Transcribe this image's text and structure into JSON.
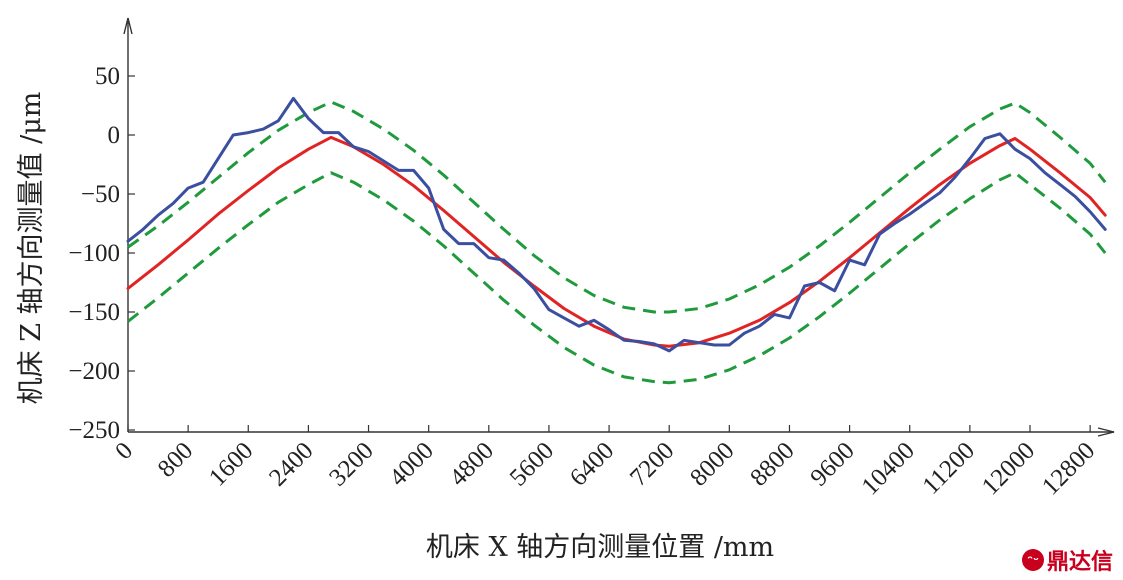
{
  "chart_data": {
    "type": "line",
    "title": "",
    "xlabel": "机床 X 轴方向测量位置 /mm",
    "ylabel": "机床 Z 轴方向测量值 /μm",
    "xlim": [
      0,
      13000
    ],
    "ylim": [
      -250,
      75
    ],
    "xticks": [
      0,
      800,
      1600,
      2400,
      3200,
      4000,
      4800,
      5600,
      6400,
      7200,
      8000,
      8800,
      9600,
      10400,
      11200,
      12000,
      12800
    ],
    "yticks": [
      50,
      0,
      -50,
      -100,
      -150,
      -200,
      -250
    ],
    "grid": false,
    "legend": "none",
    "series": [
      {
        "color": "#3a4fa0",
        "style": "solid",
        "x": [
          0,
          200,
          400,
          600,
          800,
          1000,
          1200,
          1400,
          1600,
          1800,
          2000,
          2200,
          2400,
          2600,
          2800,
          3000,
          3200,
          3400,
          3600,
          3800,
          4000,
          4200,
          4400,
          4600,
          4800,
          5000,
          5200,
          5400,
          5600,
          5800,
          6000,
          6200,
          6400,
          6600,
          6800,
          7000,
          7200,
          7400,
          7600,
          7800,
          8000,
          8200,
          8400,
          8600,
          8800,
          9000,
          9200,
          9400,
          9600,
          9800,
          10000,
          10200,
          10400,
          10600,
          10800,
          11000,
          11200,
          11400,
          11600,
          11800,
          12000,
          12200,
          12400,
          12600,
          12800,
          13000
        ],
        "y": [
          -90,
          -80,
          -68,
          -58,
          -45,
          -40,
          -20,
          0,
          2,
          5,
          12,
          31,
          14,
          2,
          2,
          -10,
          -14,
          -22,
          -30,
          -30,
          -45,
          -80,
          -92,
          -92,
          -104,
          -106,
          -117,
          -130,
          -148,
          -155,
          -162,
          -157,
          -165,
          -174,
          -175,
          -177,
          -183,
          -174,
          -176,
          -178,
          -178,
          -168,
          -162,
          -152,
          -155,
          -128,
          -125,
          -132,
          -106,
          -110,
          -84,
          -75,
          -67,
          -58,
          -49,
          -36,
          -20,
          -3,
          1,
          -12,
          -20,
          -32,
          -42,
          -52,
          -65,
          -80
        ]
      },
      {
        "color": "#e02424",
        "style": "solid",
        "x": [
          0,
          400,
          800,
          1200,
          1600,
          2000,
          2400,
          2700,
          3000,
          3400,
          3800,
          4200,
          4600,
          5000,
          5400,
          5800,
          6200,
          6600,
          7000,
          7200,
          7600,
          8000,
          8400,
          8800,
          9200,
          9600,
          10000,
          10400,
          10800,
          11200,
          11600,
          11800,
          12000,
          12400,
          12800,
          13000
        ],
        "y": [
          -130,
          -110,
          -89,
          -67,
          -47,
          -28,
          -12,
          -2,
          -10,
          -25,
          -43,
          -64,
          -86,
          -108,
          -128,
          -147,
          -162,
          -173,
          -178,
          -179,
          -176,
          -168,
          -157,
          -142,
          -124,
          -104,
          -83,
          -62,
          -42,
          -24,
          -9,
          -3,
          -12,
          -32,
          -53,
          -68
        ]
      },
      {
        "color": "#1f9a3c",
        "style": "dashed",
        "x": [
          0,
          400,
          800,
          1200,
          1600,
          2000,
          2400,
          2700,
          3000,
          3400,
          3800,
          4200,
          4600,
          5000,
          5400,
          5800,
          6200,
          6600,
          7000,
          7200,
          7600,
          8000,
          8400,
          8800,
          9200,
          9600,
          10000,
          10400,
          10800,
          11200,
          11600,
          11800,
          12000,
          12400,
          12800,
          13000
        ],
        "y": [
          -95,
          -77,
          -57,
          -36,
          -15,
          4,
          19,
          28,
          20,
          5,
          -13,
          -34,
          -57,
          -80,
          -102,
          -121,
          -136,
          -146,
          -150,
          -150,
          -147,
          -139,
          -127,
          -112,
          -94,
          -74,
          -53,
          -32,
          -12,
          7,
          22,
          27,
          19,
          -2,
          -24,
          -40
        ]
      },
      {
        "color": "#1f9a3c",
        "style": "dashed",
        "x": [
          0,
          400,
          800,
          1200,
          1600,
          2000,
          2400,
          2700,
          3000,
          3400,
          3800,
          4200,
          4600,
          5000,
          5400,
          5800,
          6200,
          6600,
          7000,
          7200,
          7600,
          8000,
          8400,
          8800,
          9200,
          9600,
          10000,
          10400,
          10800,
          11200,
          11600,
          11800,
          12000,
          12400,
          12800,
          13000
        ],
        "y": [
          -158,
          -138,
          -117,
          -96,
          -76,
          -57,
          -42,
          -32,
          -40,
          -55,
          -73,
          -94,
          -117,
          -140,
          -161,
          -180,
          -195,
          -205,
          -209,
          -210,
          -207,
          -199,
          -187,
          -172,
          -154,
          -134,
          -113,
          -92,
          -72,
          -54,
          -38,
          -32,
          -42,
          -62,
          -84,
          -100
        ]
      }
    ]
  },
  "watermark": {
    "logo": "ᵔᵕ",
    "text": "鼎达信"
  }
}
